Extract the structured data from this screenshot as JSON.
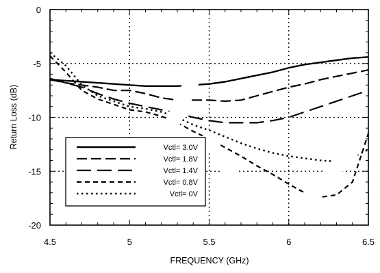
{
  "chart_data": {
    "type": "line",
    "title": "",
    "xlabel": "FREQUENCY (GHz)",
    "ylabel": "Return Loss (dB)",
    "xlim": [
      4.5,
      6.5
    ],
    "ylim": [
      -20,
      0
    ],
    "xticks": [
      "4.5",
      "5",
      "5.5",
      "6",
      "6.5"
    ],
    "yticks": [
      "0",
      "-5",
      "-10",
      "-15",
      "-20"
    ],
    "grid": true,
    "grid_style": "dotted",
    "legend_position": "bottom-left",
    "line_color": "#000000",
    "x": [
      4.5,
      4.6,
      4.7,
      4.8,
      4.9,
      5.0,
      5.1,
      5.2,
      5.3,
      5.4,
      5.5,
      5.6,
      5.7,
      5.8,
      5.9,
      6.0,
      6.1,
      6.2,
      6.3,
      6.4,
      6.5
    ],
    "series": [
      {
        "name": "Vctl= 3.0V",
        "style": "solid",
        "values": [
          -6.5,
          -6.6,
          -6.7,
          -6.8,
          -6.9,
          -7.0,
          -7.1,
          -7.1,
          -7.1,
          -7.0,
          -6.9,
          -6.7,
          -6.4,
          -6.1,
          -5.8,
          -5.4,
          -5.1,
          -4.9,
          -4.7,
          -4.5,
          -4.4
        ]
      },
      {
        "name": "Vctl= 1.8V",
        "style": "long-dash",
        "values": [
          -6.5,
          -6.8,
          -7.0,
          -7.2,
          -7.5,
          -7.5,
          -7.8,
          -8.2,
          -8.4,
          -8.4,
          -8.4,
          -8.5,
          -8.4,
          -8.0,
          -7.6,
          -7.2,
          -6.9,
          -6.5,
          -6.2,
          -5.9,
          -5.6
        ]
      },
      {
        "name": "Vctl= 1.4V",
        "style": "longer-dash",
        "values": [
          -6.4,
          -6.8,
          -7.2,
          -7.8,
          -8.3,
          -8.7,
          -9.0,
          -9.3,
          -9.6,
          -10.0,
          -10.3,
          -10.5,
          -10.5,
          -10.5,
          -10.3,
          -10.0,
          -9.5,
          -9.0,
          -8.5,
          -8.0,
          -7.5
        ]
      },
      {
        "name": "Vctl= 0.8V",
        "style": "dash",
        "values": [
          -4.3,
          -5.8,
          -7.5,
          -8.3,
          -8.8,
          -9.3,
          -9.5,
          -9.9,
          -10.5,
          -11.3,
          -12.0,
          -12.8,
          -13.6,
          -14.5,
          -15.3,
          -16.2,
          -17.0,
          -17.4,
          -17.2,
          -16.0,
          -11.5
        ]
      },
      {
        "name": "Vctl= 0V",
        "style": "dot",
        "values": [
          -4.0,
          -5.2,
          -7.0,
          -8.0,
          -8.5,
          -9.0,
          -9.2,
          -9.5,
          -10.0,
          -10.7,
          -11.2,
          -11.8,
          -12.4,
          -12.9,
          -13.3,
          -13.6,
          -13.8,
          -14.0,
          -14.1,
          -13.7,
          -13.0
        ]
      }
    ]
  }
}
